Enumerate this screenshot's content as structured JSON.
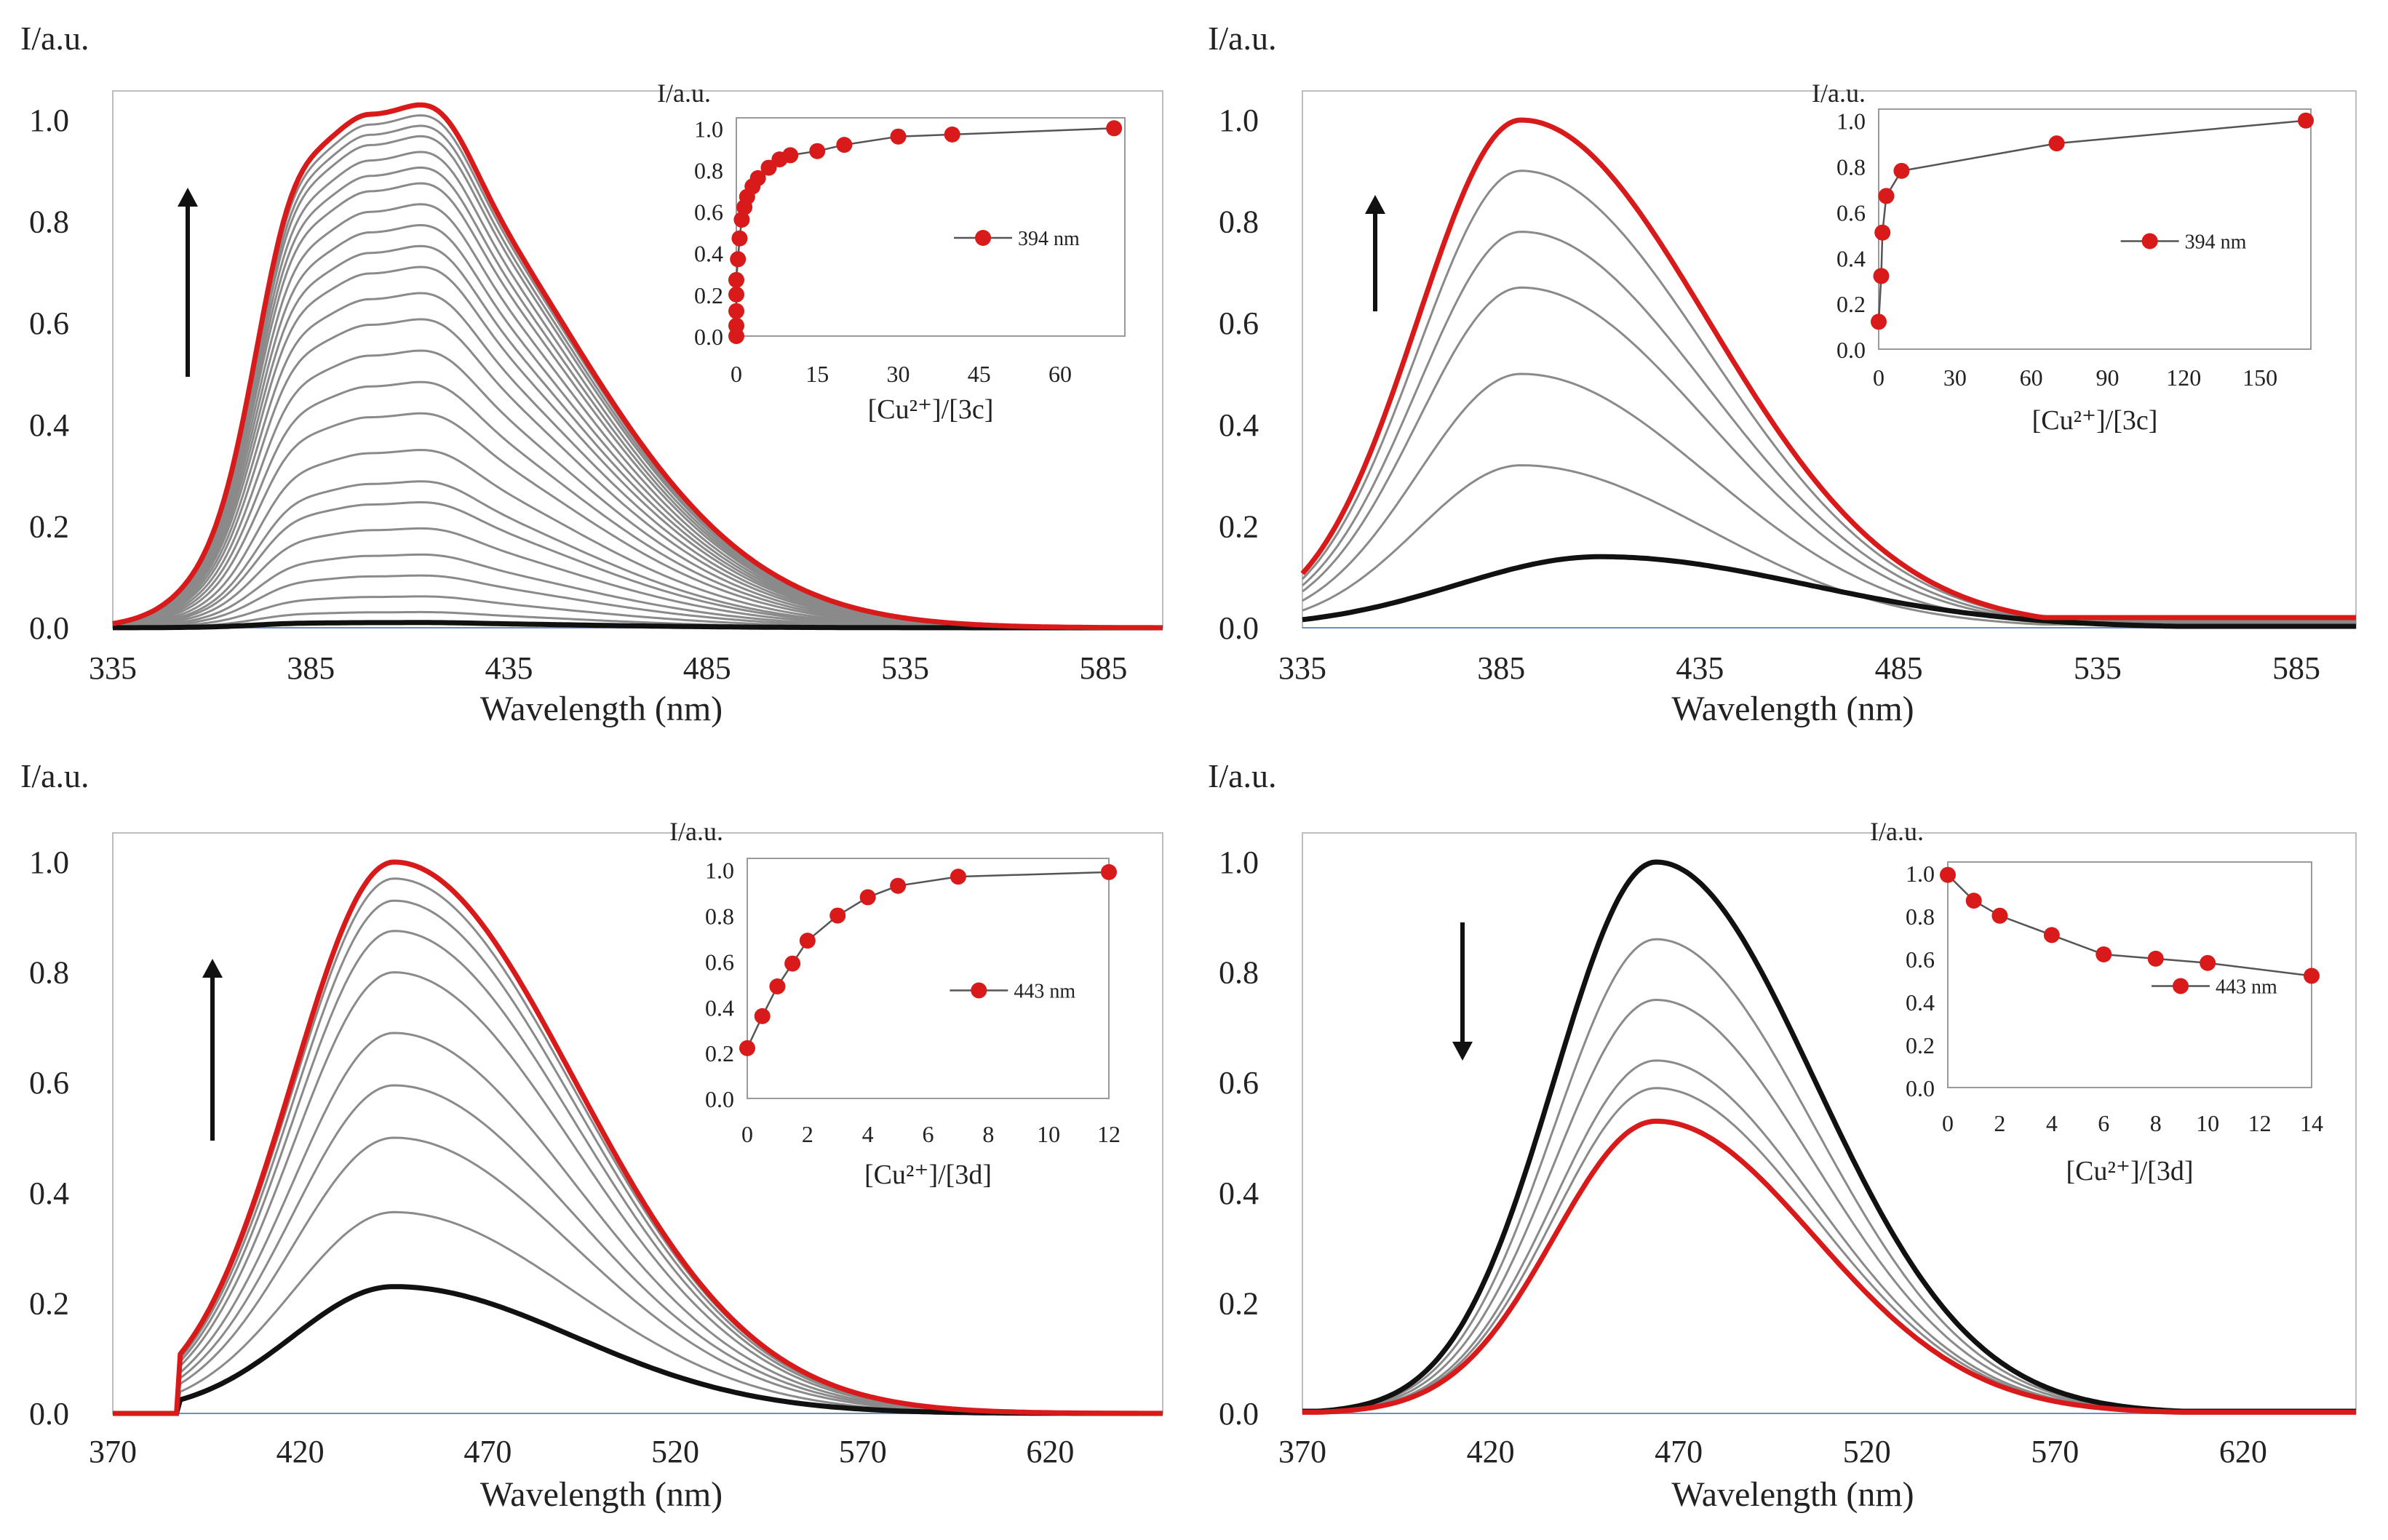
{
  "colors": {
    "red": "#d91a1a",
    "black": "#111111",
    "gray": "#8a8a8a",
    "axis": "#999999"
  },
  "chart_data": [
    {
      "type": "line",
      "panel": "top-left",
      "ylabel": "I/a.u.",
      "xlabel": "Wavelength  (nm)",
      "xlim": [
        335,
        600
      ],
      "ylim": [
        0,
        1.0
      ],
      "xticks": [
        "335",
        "385",
        "435",
        "485",
        "535",
        "585"
      ],
      "yticks": [
        "0.0",
        "0.2",
        "0.4",
        "0.6",
        "0.8",
        "1.0"
      ],
      "arrow": "up",
      "shape": {
        "peak": 400,
        "wl": 21,
        "wr": 48,
        "shoulderPos": 378,
        "shoulderAmp": 0.22,
        "shoulderW": 8,
        "shoulderPos2": 418,
        "shoulderAmp2": 0.08,
        "shoulderW2": 8,
        "smin": 0
      },
      "series": [
        {
          "name": "start",
          "peak_intensity": 0.01,
          "color": "black"
        },
        {
          "name": "titration",
          "peak_intensities": [
            0.03,
            0.06,
            0.1,
            0.14,
            0.19,
            0.24,
            0.28,
            0.34,
            0.41,
            0.47,
            0.53,
            0.59,
            0.64,
            0.69,
            0.73,
            0.77,
            0.81,
            0.85,
            0.88,
            0.91,
            0.94,
            0.96,
            0.98
          ],
          "color": "gray"
        },
        {
          "name": "final",
          "peak_intensity": 1.0,
          "color": "red"
        }
      ],
      "inset": {
        "ylabel": "I/a.u.",
        "xlabel": "[Cu²⁺]/[3c]",
        "legend": "394 nm",
        "xlim": [
          0,
          72
        ],
        "ylim": [
          0,
          1.05
        ],
        "xticks": [
          "0",
          "15",
          "30",
          "45",
          "60"
        ],
        "yticks": [
          "0.0",
          "0.2",
          "0.4",
          "0.6",
          "0.8",
          "1.0"
        ],
        "x": [
          0,
          0,
          0,
          0,
          0,
          0.3,
          0.6,
          1,
          1.5,
          2,
          3,
          4,
          6,
          8,
          10,
          15,
          20,
          30,
          40,
          70
        ],
        "y": [
          0.0,
          0.05,
          0.12,
          0.2,
          0.27,
          0.37,
          0.47,
          0.56,
          0.62,
          0.67,
          0.72,
          0.76,
          0.81,
          0.85,
          0.87,
          0.89,
          0.92,
          0.96,
          0.97,
          1.0
        ]
      }
    },
    {
      "type": "line",
      "panel": "top-right",
      "ylabel": "I/a.u.",
      "xlabel": "Wavelength  (nm)",
      "xlim": [
        335,
        600
      ],
      "ylim": [
        0,
        1.0
      ],
      "xticks": [
        "335",
        "385",
        "435",
        "485",
        "535",
        "585"
      ],
      "yticks": [
        "0.0",
        "0.2",
        "0.4",
        "0.6",
        "0.8",
        "1.0"
      ],
      "arrow": "up",
      "shape": {
        "peak": 390,
        "wl": 26,
        "wr": 47,
        "smin": 0.02
      },
      "series": [
        {
          "name": "start",
          "peak_intensity": 0.14,
          "peak_wavelength": 410,
          "color": "black"
        },
        {
          "name": "titration",
          "peak_intensities": [
            0.32,
            0.5,
            0.67,
            0.78,
            0.9
          ],
          "color": "gray"
        },
        {
          "name": "final",
          "peak_intensity": 1.0,
          "color": "red"
        }
      ],
      "inset": {
        "ylabel": "I/a.u.",
        "xlabel": "[Cu²⁺]/[3c]",
        "legend": "394 nm",
        "xlim": [
          0,
          170
        ],
        "ylim": [
          0,
          1.05
        ],
        "xticks": [
          "0",
          "30",
          "60",
          "90",
          "120",
          "150"
        ],
        "yticks": [
          "0.0",
          "0.2",
          "0.4",
          "0.6",
          "0.8",
          "1.0"
        ],
        "x": [
          0,
          1,
          1.5,
          3,
          9,
          70,
          168
        ],
        "y": [
          0.12,
          0.32,
          0.51,
          0.67,
          0.78,
          0.9,
          1.0
        ]
      }
    },
    {
      "type": "line",
      "panel": "bottom-left",
      "ylabel": "I/a.u.",
      "xlabel": "Wavelength  (nm)",
      "xlim": [
        370,
        650
      ],
      "ylim": [
        0,
        1.0
      ],
      "xticks": [
        "370",
        "420",
        "470",
        "520",
        "570",
        "620"
      ],
      "yticks": [
        "0.0",
        "0.2",
        "0.4",
        "0.6",
        "0.8",
        "1.0"
      ],
      "arrow": "up",
      "shape": {
        "peak": 445,
        "wl": 27,
        "wr": 48,
        "start": 388
      },
      "series": [
        {
          "name": "start",
          "peak_intensity": 0.23,
          "color": "black"
        },
        {
          "name": "titration",
          "peak_intensities": [
            0.365,
            0.5,
            0.595,
            0.69,
            0.8,
            0.875,
            0.93,
            0.97
          ],
          "color": "gray"
        },
        {
          "name": "final",
          "peak_intensity": 1.0,
          "color": "red"
        }
      ],
      "inset": {
        "ylabel": "I/a.u.",
        "xlabel": "[Cu²⁺]/[3d]",
        "legend": "443 nm",
        "xlim": [
          0,
          12
        ],
        "ylim": [
          0,
          1.05
        ],
        "xticks": [
          "0",
          "2",
          "4",
          "6",
          "8",
          "10",
          "12"
        ],
        "yticks": [
          "0.0",
          "0.2",
          "0.4",
          "0.6",
          "0.8",
          "1.0"
        ],
        "x": [
          0,
          0.5,
          1,
          1.5,
          2,
          3,
          4,
          5,
          7,
          12
        ],
        "y": [
          0.22,
          0.36,
          0.49,
          0.59,
          0.69,
          0.8,
          0.88,
          0.93,
          0.97,
          0.99
        ]
      }
    },
    {
      "type": "line",
      "panel": "bottom-right",
      "ylabel": "I/a.u.",
      "xlabel": "Wavelength  (nm)",
      "xlim": [
        370,
        650
      ],
      "ylim": [
        0,
        1.0
      ],
      "xticks": [
        "370",
        "420",
        "470",
        "520",
        "570",
        "620"
      ],
      "yticks": [
        "0.0",
        "0.2",
        "0.4",
        "0.6",
        "0.8",
        "1.0"
      ],
      "arrow": "down",
      "shape": {
        "peak": 464,
        "wl": 27,
        "wr": 42,
        "smin": 0.004
      },
      "series": [
        {
          "name": "start",
          "peak_intensity": 1.0,
          "color": "black"
        },
        {
          "name": "titration",
          "peak_intensities": [
            0.86,
            0.75,
            0.64,
            0.59
          ],
          "color": "gray"
        },
        {
          "name": "final",
          "peak_intensity": 0.53,
          "color": "red"
        }
      ],
      "inset": {
        "ylabel": "I/a.u.",
        "xlabel": "[Cu²⁺]/[3d]",
        "legend": "443 nm",
        "xlim": [
          0,
          14
        ],
        "ylim": [
          0,
          1.05
        ],
        "xticks": [
          "0",
          "2",
          "4",
          "6",
          "8",
          "10",
          "12",
          "14"
        ],
        "yticks": [
          "0.0",
          "0.2",
          "0.4",
          "0.6",
          "0.8",
          "1.0"
        ],
        "x": [
          0,
          1,
          2,
          4,
          6,
          8,
          10,
          14
        ],
        "y": [
          0.99,
          0.87,
          0.8,
          0.71,
          0.62,
          0.6,
          0.58,
          0.52
        ]
      }
    }
  ]
}
